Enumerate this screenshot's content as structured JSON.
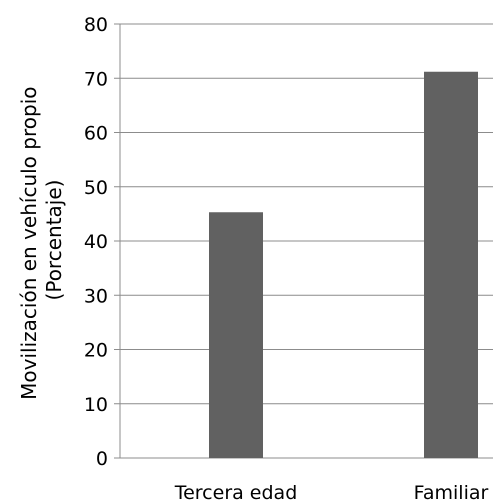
{
  "chart_data": {
    "type": "bar",
    "categories": [
      "Tercera edad",
      "Familiar"
    ],
    "values": [
      45.3,
      71.2
    ],
    "ylabel_lines": [
      "Movilización en vehículo propio",
      "(Porcentaje)"
    ],
    "ylim": [
      0,
      80
    ],
    "yticks": [
      0,
      10,
      20,
      30,
      40,
      50,
      60,
      70,
      80
    ],
    "grid": true,
    "legend": "none",
    "bar_color": "#616161",
    "grid_color": "#8c8c8c"
  }
}
